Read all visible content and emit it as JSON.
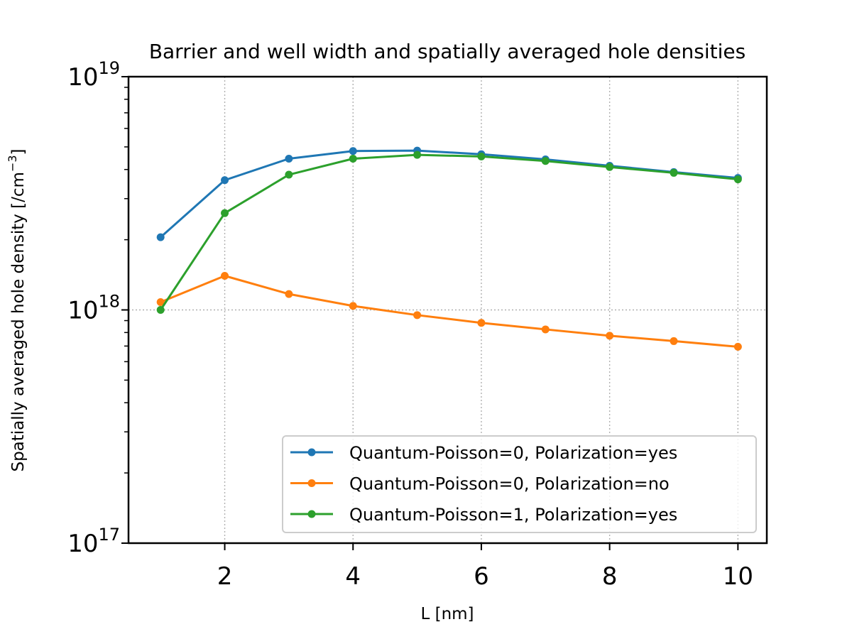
{
  "chart_data": {
    "type": "line",
    "title": "Barrier and well width and spatially averaged hole densities",
    "xlabel": "L [nm]",
    "ylabel": "Spatially averaged hole density [/cm",
    "ylabel_sup": "−3",
    "ylabel_end": "]",
    "xscale": "linear",
    "yscale": "log",
    "xlim": [
      0.5,
      10.45
    ],
    "ylim": [
      1e+17,
      1e+19
    ],
    "x_ticks": [
      2,
      4,
      6,
      8,
      10
    ],
    "y_ticks": [
      {
        "value": 1e+17,
        "base": "10",
        "exp": "17"
      },
      {
        "value": 1e+18,
        "base": "10",
        "exp": "18"
      },
      {
        "value": 1e+19,
        "base": "10",
        "exp": "19"
      }
    ],
    "grid": true,
    "legend_position": "lower-right",
    "x": [
      1,
      2,
      3,
      4,
      5,
      6,
      7,
      8,
      9,
      10
    ],
    "series": [
      {
        "name": "Quantum-Poisson=0, Polarization=yes",
        "color": "#1f77b4",
        "values": [
          2.05e+18,
          3.6e+18,
          4.45e+18,
          4.8e+18,
          4.82e+18,
          4.65e+18,
          4.42e+18,
          4.15e+18,
          3.9e+18,
          3.68e+18
        ]
      },
      {
        "name": "Quantum-Poisson=0, Polarization=no",
        "color": "#ff7f0e",
        "values": [
          1.08e+18,
          1.4e+18,
          1.17e+18,
          1.04e+18,
          9.5e+17,
          8.8e+17,
          8.25e+17,
          7.75e+17,
          7.35e+17,
          6.95e+17
        ]
      },
      {
        "name": "Quantum-Poisson=1, Polarization=yes",
        "color": "#2ca02c",
        "values": [
          1e+18,
          2.6e+18,
          3.8e+18,
          4.45e+18,
          4.62e+18,
          4.55e+18,
          4.35e+18,
          4.1e+18,
          3.87e+18,
          3.63e+18
        ]
      }
    ]
  }
}
